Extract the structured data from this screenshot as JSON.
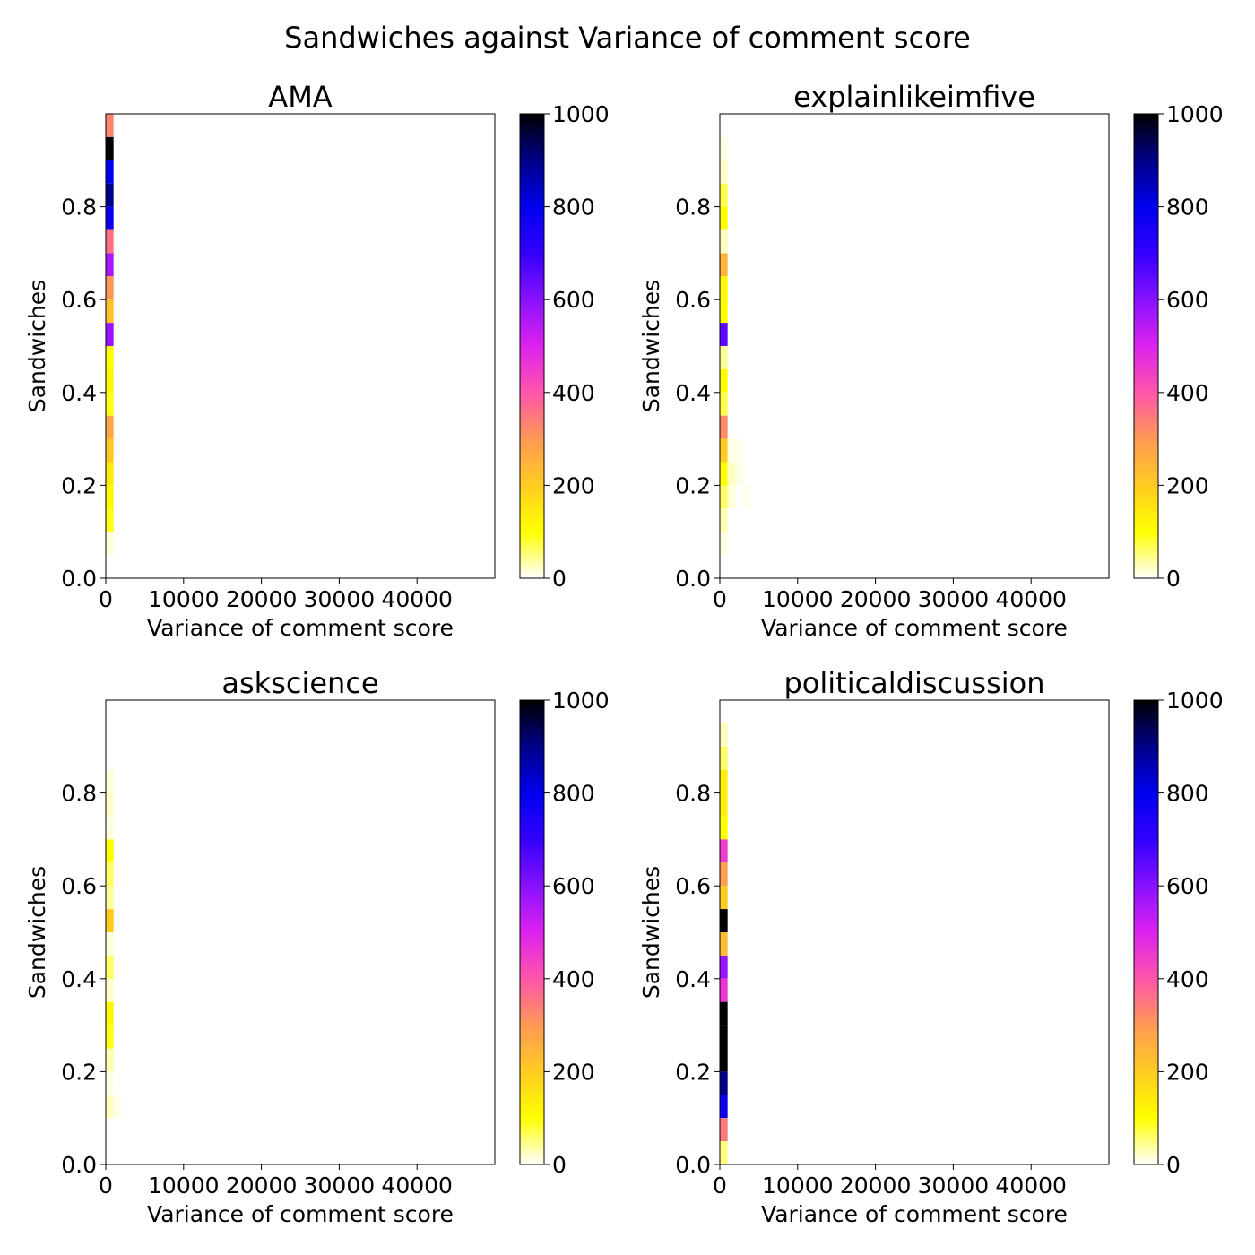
{
  "figure": {
    "suptitle": "Sandwiches against Variance of comment score"
  },
  "chart_data": [
    {
      "type": "heatmap",
      "title": "AMA",
      "xlabel": "Variance of comment score",
      "ylabel": "Sandwiches",
      "xlim": [
        0,
        50000
      ],
      "ylim": [
        0,
        1.0
      ],
      "xticks": [
        "0",
        "10000",
        "20000",
        "30000",
        "40000"
      ],
      "xtick_values": [
        0,
        10000,
        20000,
        30000,
        40000
      ],
      "yticks": [
        "0.0",
        "0.2",
        "0.4",
        "0.6",
        "0.8"
      ],
      "ytick_values": [
        0.0,
        0.2,
        0.4,
        0.6,
        0.8
      ],
      "colorbar": {
        "ticks": [
          "0",
          "200",
          "400",
          "600",
          "800",
          "1000"
        ],
        "tick_values": [
          0,
          200,
          400,
          600,
          800,
          1000
        ],
        "range": [
          0,
          1000
        ],
        "colormap": "gnuplot2_r"
      },
      "bin_width_x": 1000,
      "bin_height_y": 0.05,
      "cells": [
        {
          "x": 0,
          "y": 0.95,
          "count": 330
        },
        {
          "x": 0,
          "y": 0.9,
          "count": 1000
        },
        {
          "x": 0,
          "y": 0.85,
          "count": 800
        },
        {
          "x": 0,
          "y": 0.8,
          "count": 900
        },
        {
          "x": 0,
          "y": 0.75,
          "count": 780
        },
        {
          "x": 0,
          "y": 0.7,
          "count": 360
        },
        {
          "x": 0,
          "y": 0.65,
          "count": 560
        },
        {
          "x": 0,
          "y": 0.6,
          "count": 300
        },
        {
          "x": 0,
          "y": 0.55,
          "count": 220
        },
        {
          "x": 0,
          "y": 0.5,
          "count": 580
        },
        {
          "x": 0,
          "y": 0.45,
          "count": 100
        },
        {
          "x": 0,
          "y": 0.4,
          "count": 120
        },
        {
          "x": 0,
          "y": 0.35,
          "count": 90
        },
        {
          "x": 0,
          "y": 0.3,
          "count": 270
        },
        {
          "x": 0,
          "y": 0.25,
          "count": 210
        },
        {
          "x": 0,
          "y": 0.2,
          "count": 140
        },
        {
          "x": 0,
          "y": 0.15,
          "count": 110
        },
        {
          "x": 0,
          "y": 0.1,
          "count": 90
        },
        {
          "x": 0,
          "y": 0.05,
          "count": 15
        }
      ]
    },
    {
      "type": "heatmap",
      "title": "explainlikeimfive",
      "xlabel": "Variance of comment score",
      "ylabel": "Sandwiches",
      "xlim": [
        0,
        50000
      ],
      "ylim": [
        0,
        1.0
      ],
      "xticks": [
        "0",
        "10000",
        "20000",
        "30000",
        "40000"
      ],
      "xtick_values": [
        0,
        10000,
        20000,
        30000,
        40000
      ],
      "yticks": [
        "0.0",
        "0.2",
        "0.4",
        "0.6",
        "0.8"
      ],
      "ytick_values": [
        0.0,
        0.2,
        0.4,
        0.6,
        0.8
      ],
      "colorbar": {
        "ticks": [
          "0",
          "200",
          "400",
          "600",
          "800",
          "1000"
        ],
        "tick_values": [
          0,
          200,
          400,
          600,
          800,
          1000
        ],
        "range": [
          0,
          1000
        ],
        "colormap": "gnuplot2_r"
      },
      "bin_width_x": 1000,
      "bin_height_y": 0.05,
      "cells": [
        {
          "x": 0,
          "y": 0.9,
          "count": 10
        },
        {
          "x": 0,
          "y": 0.85,
          "count": 20
        },
        {
          "x": 0,
          "y": 0.8,
          "count": 70
        },
        {
          "x": 0,
          "y": 0.75,
          "count": 100
        },
        {
          "x": 0,
          "y": 0.7,
          "count": 25
        },
        {
          "x": 0,
          "y": 0.65,
          "count": 250
        },
        {
          "x": 0,
          "y": 0.6,
          "count": 110
        },
        {
          "x": 0,
          "y": 0.55,
          "count": 100
        },
        {
          "x": 0,
          "y": 0.5,
          "count": 650
        },
        {
          "x": 0,
          "y": 0.45,
          "count": 40
        },
        {
          "x": 0,
          "y": 0.4,
          "count": 100
        },
        {
          "x": 0,
          "y": 0.35,
          "count": 70
        },
        {
          "x": 0,
          "y": 0.3,
          "count": 320
        },
        {
          "x": 0,
          "y": 0.25,
          "count": 200
        },
        {
          "x": 0,
          "y": 0.2,
          "count": 100
        },
        {
          "x": 0,
          "y": 0.15,
          "count": 60
        },
        {
          "x": 0,
          "y": 0.1,
          "count": 30
        },
        {
          "x": 0,
          "y": 0.05,
          "count": 10
        },
        {
          "x": 1000,
          "y": 0.25,
          "count": 10
        },
        {
          "x": 1000,
          "y": 0.2,
          "count": 25
        },
        {
          "x": 1000,
          "y": 0.15,
          "count": 15
        },
        {
          "x": 2000,
          "y": 0.25,
          "count": 8
        },
        {
          "x": 2000,
          "y": 0.2,
          "count": 10
        },
        {
          "x": 3000,
          "y": 0.15,
          "count": 8
        }
      ]
    },
    {
      "type": "heatmap",
      "title": "askscience",
      "xlabel": "Variance of comment score",
      "ylabel": "Sandwiches",
      "xlim": [
        0,
        50000
      ],
      "ylim": [
        0,
        1.0
      ],
      "xticks": [
        "0",
        "10000",
        "20000",
        "30000",
        "40000"
      ],
      "xtick_values": [
        0,
        10000,
        20000,
        30000,
        40000
      ],
      "yticks": [
        "0.0",
        "0.2",
        "0.4",
        "0.6",
        "0.8"
      ],
      "ytick_values": [
        0.0,
        0.2,
        0.4,
        0.6,
        0.8
      ],
      "colorbar": {
        "ticks": [
          "0",
          "200",
          "400",
          "600",
          "800",
          "1000"
        ],
        "tick_values": [
          0,
          200,
          400,
          600,
          800,
          1000
        ],
        "range": [
          0,
          1000
        ],
        "colormap": "gnuplot2_r"
      },
      "bin_width_x": 1000,
      "bin_height_y": 0.05,
      "cells": [
        {
          "x": 0,
          "y": 0.8,
          "count": 15
        },
        {
          "x": 0,
          "y": 0.75,
          "count": 20
        },
        {
          "x": 0,
          "y": 0.7,
          "count": 12
        },
        {
          "x": 0,
          "y": 0.65,
          "count": 100
        },
        {
          "x": 0,
          "y": 0.6,
          "count": 60
        },
        {
          "x": 0,
          "y": 0.55,
          "count": 40
        },
        {
          "x": 0,
          "y": 0.5,
          "count": 200
        },
        {
          "x": 0,
          "y": 0.45,
          "count": 15
        },
        {
          "x": 0,
          "y": 0.4,
          "count": 60
        },
        {
          "x": 0,
          "y": 0.35,
          "count": 20
        },
        {
          "x": 0,
          "y": 0.3,
          "count": 110
        },
        {
          "x": 0,
          "y": 0.25,
          "count": 90
        },
        {
          "x": 0,
          "y": 0.2,
          "count": 30
        },
        {
          "x": 0,
          "y": 0.15,
          "count": 10
        },
        {
          "x": 0,
          "y": 0.1,
          "count": 25
        },
        {
          "x": 1000,
          "y": 0.1,
          "count": 8
        }
      ]
    },
    {
      "type": "heatmap",
      "title": "politicaldiscussion",
      "xlabel": "Variance of comment score",
      "ylabel": "Sandwiches",
      "xlim": [
        0,
        50000
      ],
      "ylim": [
        0,
        1.0
      ],
      "xticks": [
        "0",
        "10000",
        "20000",
        "30000",
        "40000"
      ],
      "xtick_values": [
        0,
        10000,
        20000,
        30000,
        40000
      ],
      "yticks": [
        "0.0",
        "0.2",
        "0.4",
        "0.6",
        "0.8"
      ],
      "ytick_values": [
        0.0,
        0.2,
        0.4,
        0.6,
        0.8
      ],
      "colorbar": {
        "ticks": [
          "0",
          "200",
          "400",
          "600",
          "800",
          "1000"
        ],
        "tick_values": [
          0,
          200,
          400,
          600,
          800,
          1000
        ],
        "range": [
          0,
          1000
        ],
        "colormap": "gnuplot2_r"
      },
      "bin_width_x": 1000,
      "bin_height_y": 0.05,
      "cells": [
        {
          "x": 0,
          "y": 0.9,
          "count": 25
        },
        {
          "x": 0,
          "y": 0.85,
          "count": 60
        },
        {
          "x": 0,
          "y": 0.8,
          "count": 130
        },
        {
          "x": 0,
          "y": 0.75,
          "count": 130
        },
        {
          "x": 0,
          "y": 0.7,
          "count": 100
        },
        {
          "x": 0,
          "y": 0.65,
          "count": 450
        },
        {
          "x": 0,
          "y": 0.6,
          "count": 290
        },
        {
          "x": 0,
          "y": 0.55,
          "count": 200
        },
        {
          "x": 0,
          "y": 0.5,
          "count": 1000
        },
        {
          "x": 0,
          "y": 0.45,
          "count": 230
        },
        {
          "x": 0,
          "y": 0.4,
          "count": 580
        },
        {
          "x": 0,
          "y": 0.35,
          "count": 460
        },
        {
          "x": 0,
          "y": 0.3,
          "count": 1000
        },
        {
          "x": 0,
          "y": 0.25,
          "count": 1000
        },
        {
          "x": 0,
          "y": 0.2,
          "count": 1000
        },
        {
          "x": 0,
          "y": 0.15,
          "count": 900
        },
        {
          "x": 0,
          "y": 0.1,
          "count": 780
        },
        {
          "x": 0,
          "y": 0.05,
          "count": 350
        },
        {
          "x": 0,
          "y": 0.0,
          "count": 50
        }
      ]
    }
  ]
}
